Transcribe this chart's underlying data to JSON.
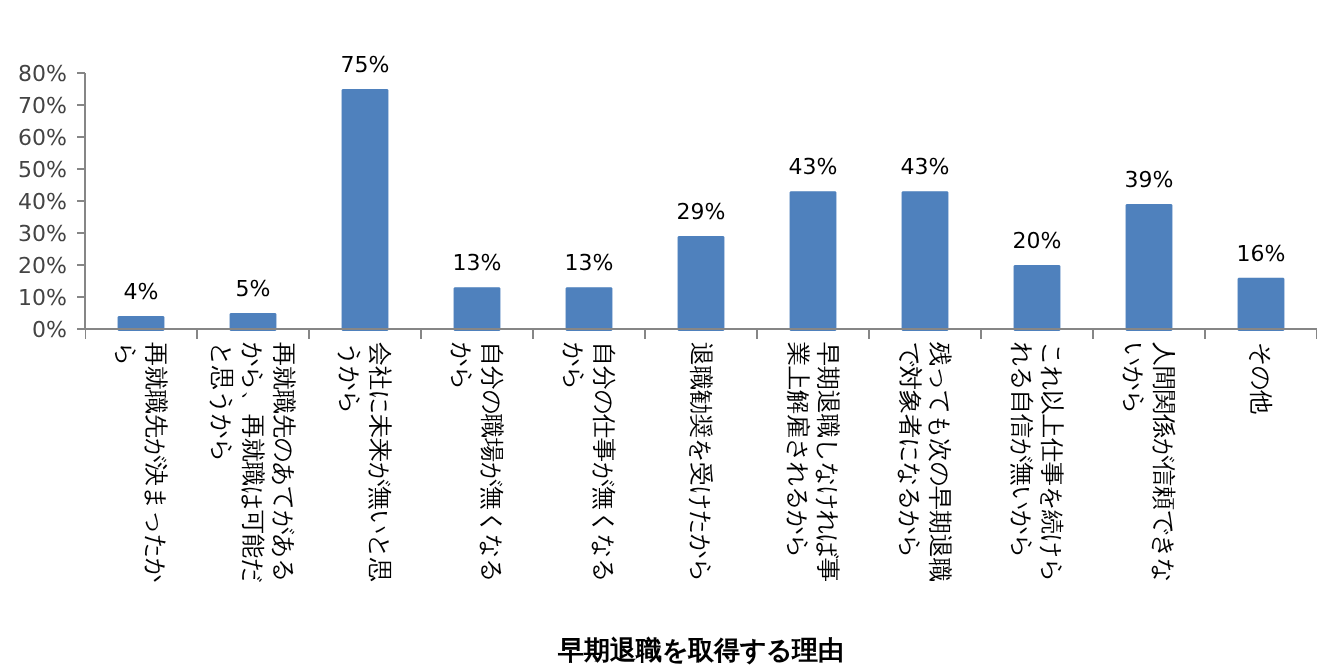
{
  "chart_data": {
    "type": "bar",
    "xlabel": "早期退職を取得する理由",
    "categories": [
      "再就職先が決まったから",
      "再就職先のあてがあるから、再就職は可能だと思うから",
      "会社に未来が無いと思うから",
      "自分の職場が無くなるから",
      "自分の仕事が無くなるから",
      "退職勧奨を受けたから",
      "早期退職しなければ事業上解雇されるから",
      "残っても次の早期退職で対象者になるから",
      "これ以上仕事を続けられる自信が無いから",
      "人間関係が信頼できないから",
      "その他"
    ],
    "values": [
      4,
      5,
      75,
      13,
      13,
      29,
      43,
      43,
      20,
      39,
      16
    ],
    "value_labels": [
      "4%",
      "5%",
      "75%",
      "13%",
      "13%",
      "29%",
      "43%",
      "43%",
      "20%",
      "39%",
      "16%"
    ],
    "color": "#4f81bd",
    "ylim": [
      0,
      80
    ],
    "yticks": [
      {
        "value": 0,
        "label": "0%"
      },
      {
        "value": 10,
        "label": "10%"
      },
      {
        "value": 20,
        "label": "20%"
      },
      {
        "value": 30,
        "label": "30%"
      },
      {
        "value": 40,
        "label": "40%"
      },
      {
        "value": 50,
        "label": "50%"
      },
      {
        "value": 60,
        "label": "60%"
      },
      {
        "value": 70,
        "label": "70%"
      },
      {
        "value": 80,
        "label": "80%"
      }
    ],
    "grid": false
  }
}
